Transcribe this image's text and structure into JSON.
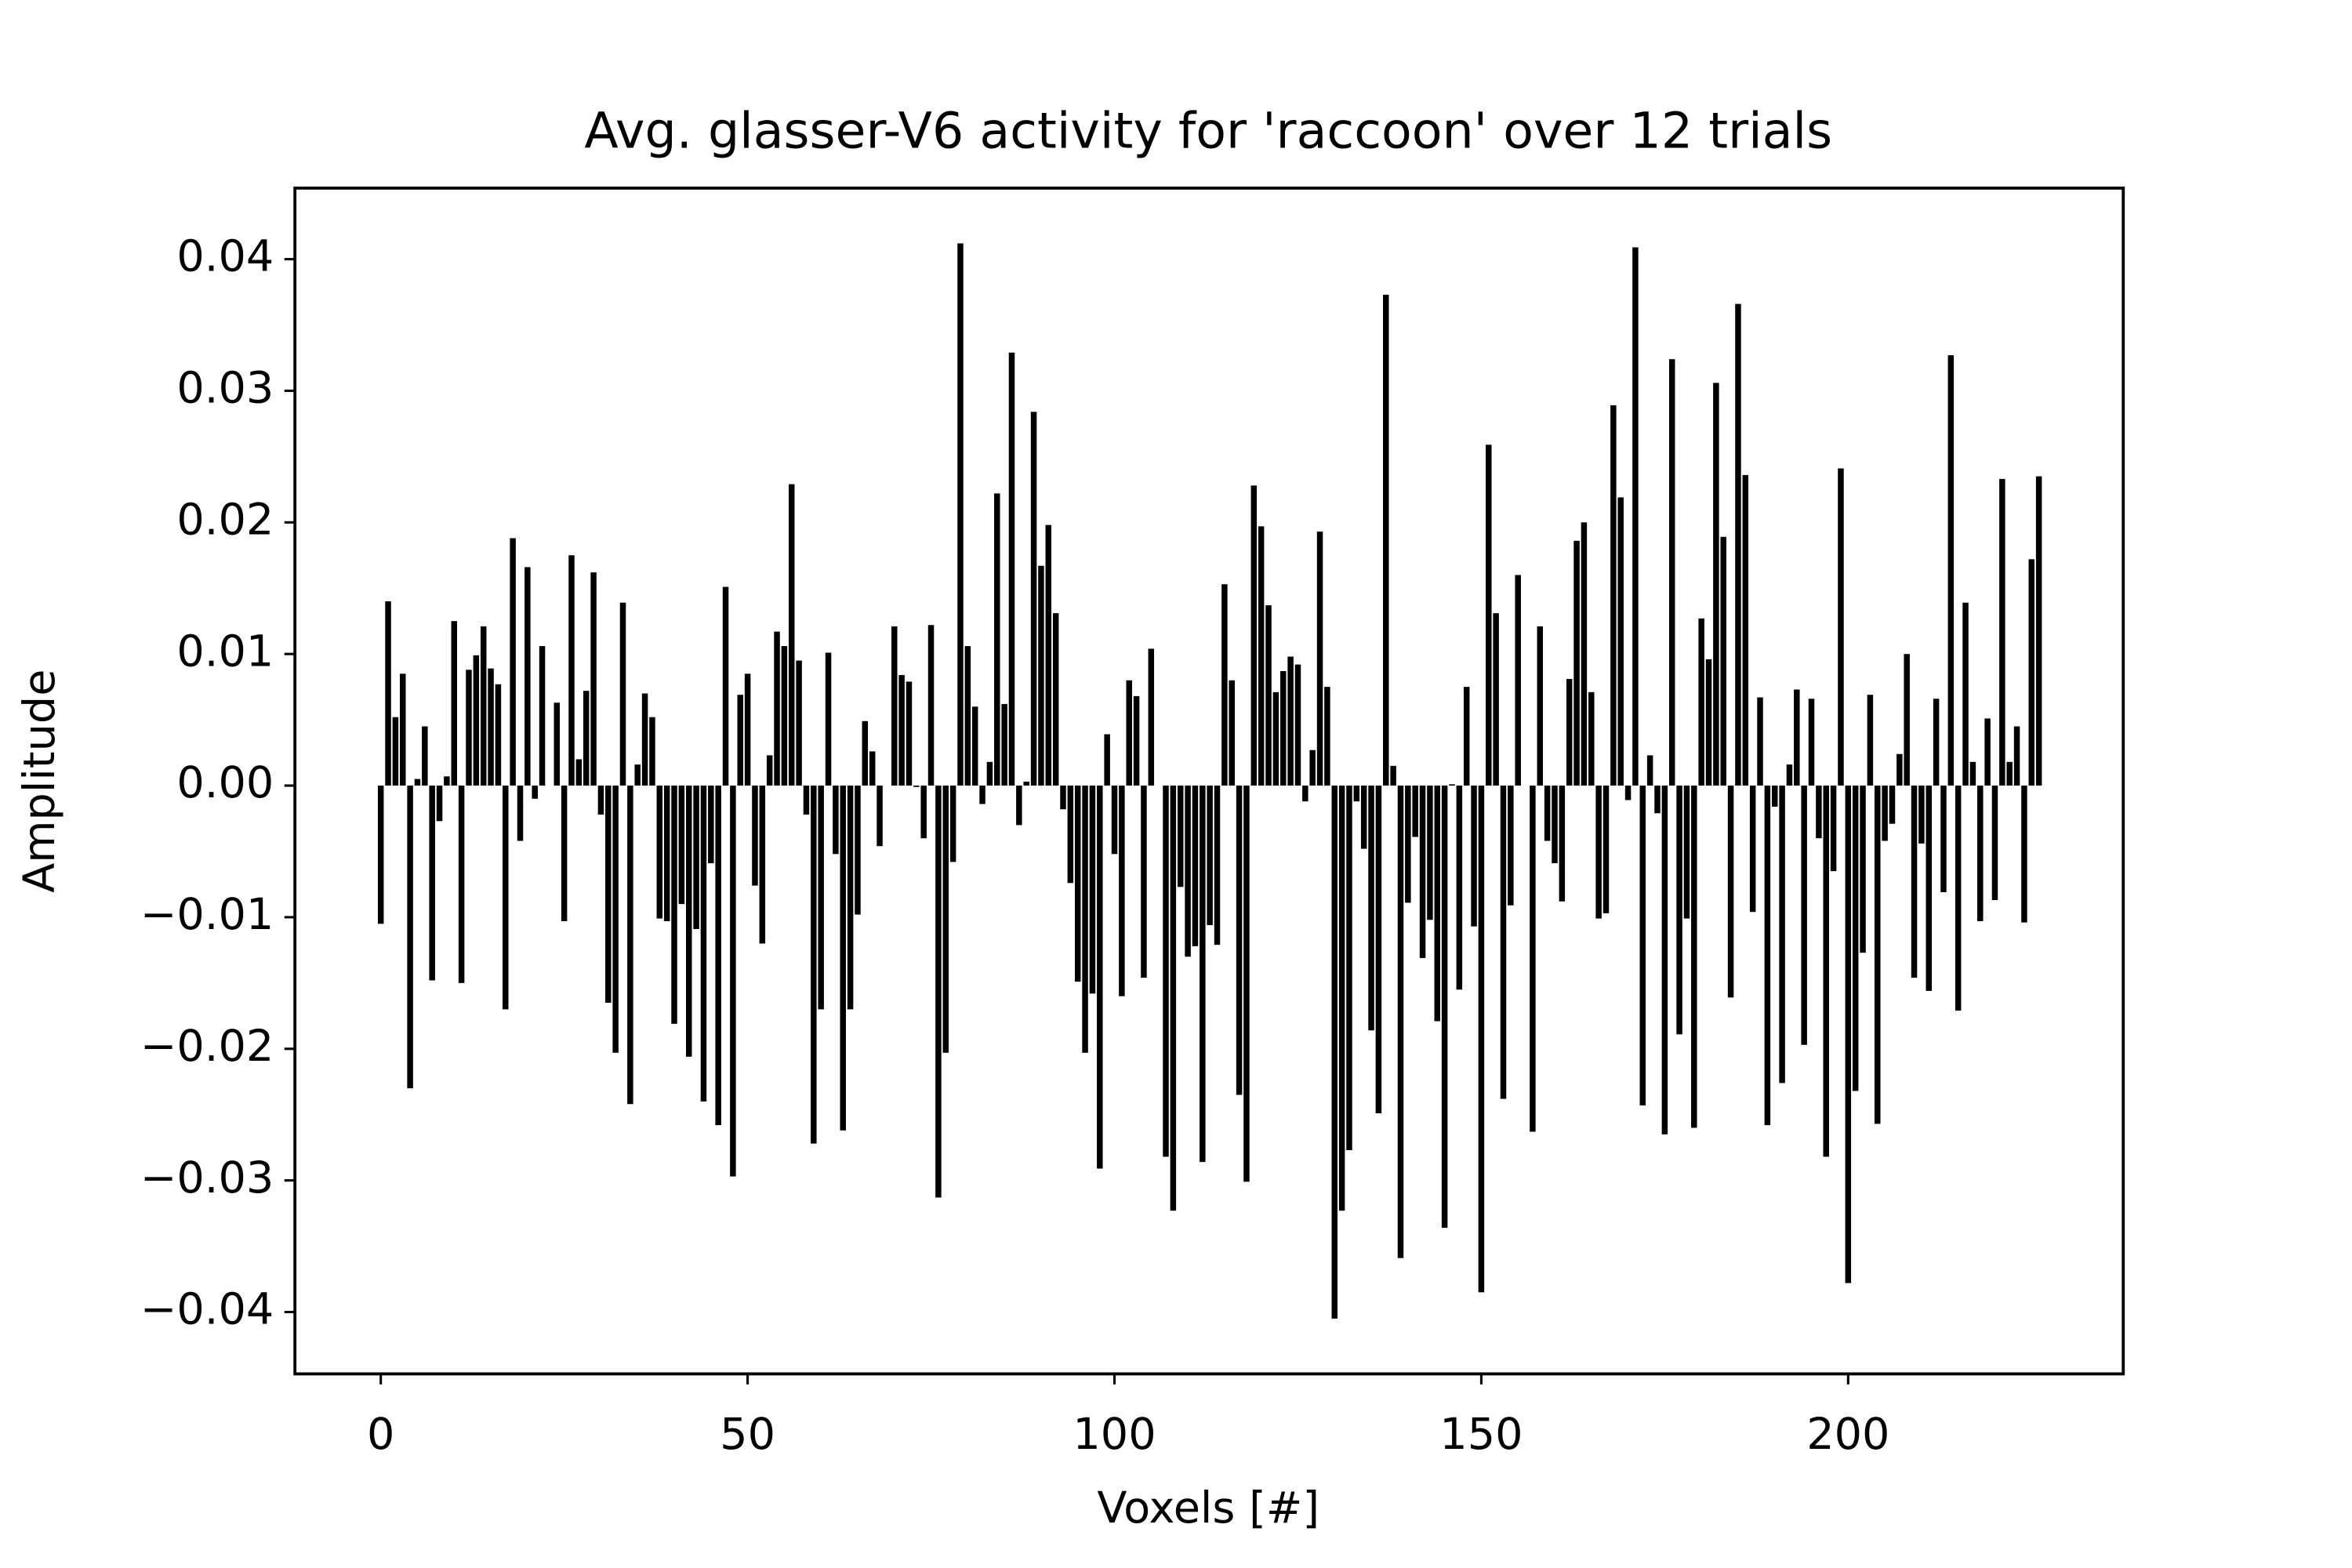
{
  "chart_data": {
    "type": "bar",
    "title": "Avg. glasser-V6 activity for 'raccoon' over 12 trials",
    "xlabel": "Voxels [#]",
    "ylabel": "Amplitude",
    "color": "#000000",
    "x": [
      0,
      1,
      2,
      3,
      4,
      5,
      6,
      7,
      8,
      9,
      10,
      11,
      12,
      13,
      14,
      15,
      16,
      17,
      18,
      19,
      20,
      21,
      22,
      23,
      24,
      25,
      26,
      27,
      28,
      29,
      30,
      31,
      32,
      33,
      34,
      35,
      36,
      37,
      38,
      39,
      40,
      41,
      42,
      43,
      44,
      45,
      46,
      47,
      48,
      49,
      50,
      51,
      52,
      53,
      54,
      55,
      56,
      57,
      58,
      59,
      60,
      61,
      62,
      63,
      64,
      65,
      66,
      67,
      68,
      69,
      70,
      71,
      72,
      73,
      74,
      75,
      76,
      77,
      78,
      79,
      80,
      81,
      82,
      83,
      84,
      85,
      86,
      87,
      88,
      89,
      90,
      91,
      92,
      93,
      94,
      95,
      96,
      97,
      98,
      99,
      100,
      101,
      102,
      103,
      104,
      105,
      106,
      107,
      108,
      109,
      110,
      111,
      112,
      113,
      114,
      115,
      116,
      117,
      118,
      119,
      120,
      121,
      122,
      123,
      124,
      125,
      126,
      127,
      128,
      129,
      130,
      131,
      132,
      133,
      134,
      135,
      136,
      137,
      138,
      139,
      140,
      141,
      142,
      143,
      144,
      145,
      146,
      147,
      148,
      149,
      150,
      151,
      152,
      153,
      154,
      155,
      156,
      157,
      158,
      159,
      160,
      161,
      162,
      163,
      164,
      165,
      166,
      167,
      168,
      169,
      170,
      171,
      172,
      173,
      174,
      175,
      176,
      177,
      178,
      179,
      180,
      181,
      182,
      183,
      184,
      185,
      186,
      187,
      188,
      189,
      190,
      191,
      192,
      193,
      194,
      195,
      196,
      197,
      198,
      199,
      200,
      201,
      202,
      203,
      204,
      205,
      206,
      207,
      208,
      209,
      210,
      211,
      212,
      213,
      214,
      215,
      216,
      217,
      218,
      219,
      220,
      221,
      222,
      223,
      224,
      225,
      226
    ],
    "values": [
      -0.0105,
      0.014,
      0.0052,
      0.0085,
      -0.023,
      0.0005,
      0.0045,
      -0.0148,
      -0.0027,
      0.0007,
      0.0125,
      -0.015,
      0.0088,
      0.0099,
      0.0121,
      0.0089,
      0.0077,
      -0.017,
      0.0188,
      -0.0042,
      0.0166,
      -0.001,
      0.0106,
      0.0,
      0.0063,
      -0.0103,
      0.0175,
      0.002,
      0.0072,
      0.0162,
      -0.0022,
      -0.0165,
      -0.0203,
      0.0139,
      -0.0242,
      0.0016,
      0.007,
      0.0052,
      -0.0101,
      -0.0103,
      -0.0181,
      -0.009,
      -0.0206,
      -0.0109,
      -0.024,
      -0.0059,
      -0.0258,
      0.0151,
      -0.0297,
      0.0069,
      0.0085,
      -0.0076,
      -0.012,
      0.0023,
      0.0117,
      0.0106,
      0.0229,
      0.0095,
      -0.0022,
      -0.0272,
      -0.017,
      0.0101,
      -0.0052,
      -0.0262,
      -0.017,
      -0.0098,
      0.0049,
      0.0026,
      -0.0046,
      0.0,
      0.0121,
      0.0084,
      0.0079,
      -0.0001,
      -0.004,
      0.0122,
      -0.0313,
      -0.0203,
      -0.0058,
      0.0412,
      0.0106,
      0.006,
      -0.0014,
      0.0018,
      0.0222,
      0.0062,
      0.0329,
      -0.003,
      0.0003,
      0.0284,
      0.0167,
      0.0198,
      0.0131,
      -0.0018,
      -0.0074,
      -0.0149,
      -0.0203,
      -0.0158,
      -0.0291,
      0.0039,
      -0.0052,
      -0.016,
      0.008,
      0.0068,
      -0.0146,
      0.0104,
      0.0,
      -0.0282,
      -0.0323,
      -0.0077,
      -0.013,
      -0.0122,
      -0.0286,
      -0.0106,
      -0.0121,
      0.0153,
      0.008,
      -0.0235,
      -0.0301,
      0.0228,
      0.0197,
      0.0137,
      0.0071,
      0.0087,
      0.0098,
      0.0092,
      -0.0012,
      0.0027,
      0.0193,
      0.0075,
      -0.0405,
      -0.0323,
      -0.0277,
      -0.0012,
      -0.0048,
      -0.0186,
      -0.0249,
      0.0373,
      0.0015,
      -0.0359,
      -0.0089,
      -0.0039,
      -0.0131,
      -0.0102,
      -0.0179,
      -0.0336,
      0.0001,
      -0.0155,
      0.0075,
      -0.0107,
      -0.0385,
      0.0259,
      0.0131,
      -0.0238,
      -0.0091,
      0.016,
      0.0,
      -0.0263,
      0.0121,
      -0.0042,
      -0.0059,
      -0.0088,
      0.0081,
      0.0186,
      0.02,
      0.0071,
      -0.0101,
      -0.0097,
      0.0289,
      0.0219,
      -0.0011,
      0.0409,
      -0.0243,
      0.0023,
      -0.0021,
      -0.0265,
      0.0324,
      -0.0189,
      -0.0101,
      -0.026,
      0.0127,
      0.0096,
      0.0306,
      0.0189,
      -0.0161,
      0.0366,
      0.0236,
      -0.0096,
      0.0067,
      -0.0258,
      -0.0016,
      -0.0226,
      0.0016,
      0.0073,
      -0.0197,
      0.0066,
      -0.004,
      -0.0282,
      -0.0065,
      0.0241,
      -0.0378,
      -0.0232,
      -0.0127,
      0.0069,
      -0.0257,
      -0.0042,
      -0.0029,
      0.0024,
      0.01,
      -0.0146,
      -0.0044,
      -0.0156,
      0.0066,
      -0.0081,
      0.0327,
      -0.0171,
      0.0139,
      0.0018,
      -0.0103,
      0.0051,
      -0.0087,
      0.0233,
      0.0018,
      0.0045,
      -0.0104,
      0.0172,
      0.0235
    ],
    "xlim": [
      -11.7,
      237.5
    ],
    "xticks": [
      0,
      50,
      100,
      150,
      200
    ],
    "ylim": [
      -0.0447,
      0.0454
    ],
    "yticks": [
      {
        "value": -0.04,
        "label": "−0.04"
      },
      {
        "value": -0.03,
        "label": "−0.03"
      },
      {
        "value": -0.02,
        "label": "−0.02"
      },
      {
        "value": -0.01,
        "label": "−0.01"
      },
      {
        "value": 0,
        "label": "0.00"
      },
      0.01,
      0.02,
      0.03,
      0.04
    ],
    "grid": false
  }
}
